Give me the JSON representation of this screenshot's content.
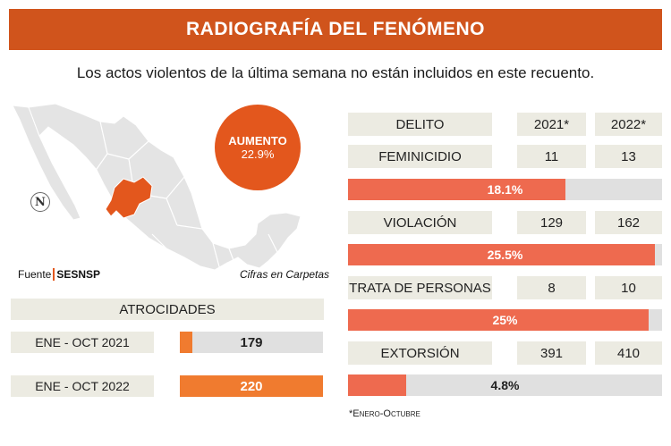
{
  "header": {
    "title": "RADIOGRAFÍA DEL FENÓMENO"
  },
  "subtitle": "Los actos violentos de la última semana no están incluidos en este recuento.",
  "map": {
    "bubble_line1": "AUMENTO",
    "bubble_line2": "22.9%",
    "north_symbol": "N",
    "source_prefix": "Fuente",
    "source_name": "SESNSP",
    "cifras": "Cifras en Carpetas",
    "highlight_color": "#e3571d",
    "country_color": "#e4e4e4"
  },
  "atrocidades": {
    "title": "ATROCIDADES",
    "rows": [
      {
        "label": "ENE - OCT 2021",
        "value": "179"
      },
      {
        "label": "ENE - OCT 2022",
        "value": "220"
      }
    ]
  },
  "table": {
    "headers": [
      "DELITO",
      "2021*",
      "2022*"
    ],
    "rows": [
      {
        "delito": "FEMINICIDIO",
        "y2021": "11",
        "y2022": "13",
        "pct": "18.1%"
      },
      {
        "delito": "VIOLACIÓN",
        "y2021": "129",
        "y2022": "162",
        "pct": "25.5%"
      },
      {
        "delito": "TRATA DE PERSONAS",
        "y2021": "8",
        "y2022": "10",
        "pct": "25%"
      },
      {
        "delito": "EXTORSIÓN",
        "y2021": "391",
        "y2022": "410",
        "pct": "4.8%"
      }
    ]
  },
  "footnote": "*Enero-Octubre",
  "chart_data": [
    {
      "type": "bar",
      "title": "ATROCIDADES",
      "categories": [
        "ENE - OCT 2021",
        "ENE - OCT 2022"
      ],
      "values": [
        179,
        220
      ],
      "color": "#f07b2f"
    },
    {
      "type": "bar",
      "categories": [
        "FEMINICIDIO",
        "VIOLACIÓN",
        "TRATA DE PERSONAS",
        "EXTORSIÓN"
      ],
      "values": [
        18.1,
        25.5,
        25,
        4.8
      ],
      "color": "#ee6a4f"
    }
  ]
}
